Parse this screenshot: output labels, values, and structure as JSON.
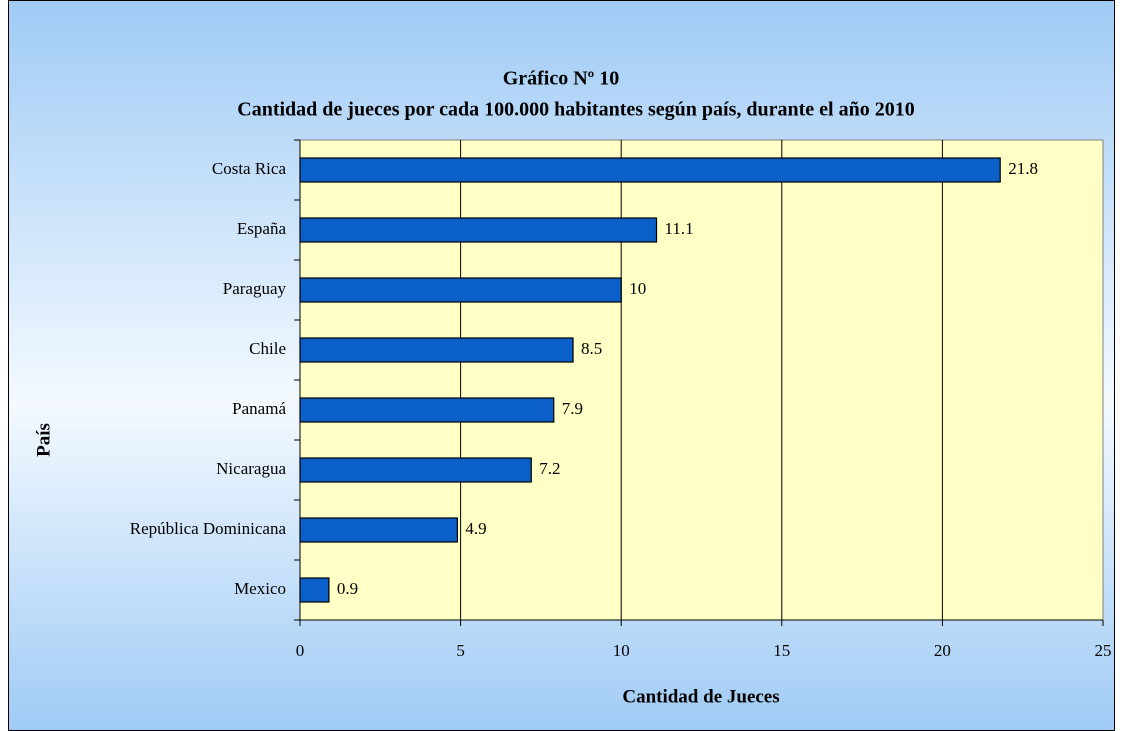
{
  "chart_data": {
    "type": "hbar",
    "title": "Gráfico Nº 10",
    "subtitle": "Cantidad de jueces por cada 100.000 habitantes según país, durante el año 2010",
    "x_label": "Cantidad de Jueces",
    "y_label": "País",
    "categories": [
      "Costa Rica",
      "España",
      "Paraguay",
      "Chile",
      "Panamá",
      "Nicaragua",
      "República Dominicana",
      "Mexico"
    ],
    "values": [
      21.8,
      11.1,
      10,
      8.5,
      7.9,
      7.2,
      4.9,
      0.9
    ],
    "color": "#0a5fc9",
    "xlim": [
      0,
      25
    ],
    "xticks": [
      0,
      5,
      10,
      15,
      20,
      25
    ],
    "grid": true
  }
}
